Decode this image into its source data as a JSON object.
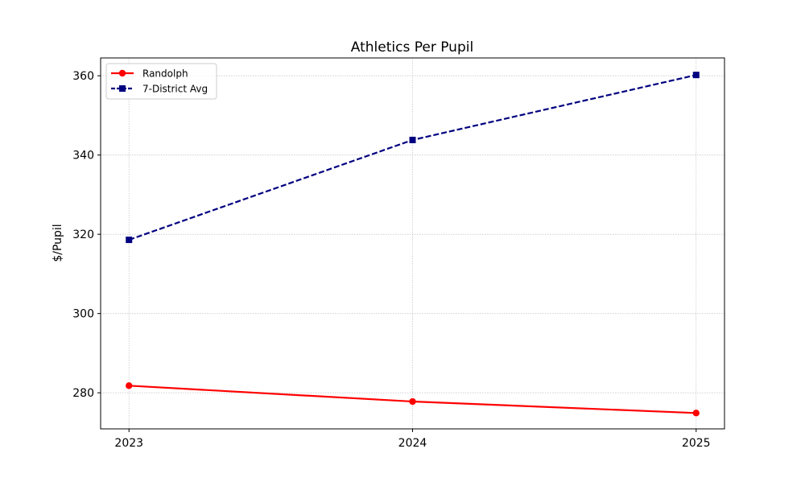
{
  "chart_data": {
    "type": "line",
    "title": "Athletics Per Pupil",
    "xlabel": "",
    "ylabel": "$/Pupil",
    "x": [
      2023,
      2024,
      2025
    ],
    "x_tick_labels": [
      "2023",
      "2024",
      "2025"
    ],
    "xlim": [
      2022.9,
      2025.1
    ],
    "ylim": [
      270.9,
      364.5
    ],
    "y_ticks": [
      280,
      300,
      320,
      340,
      360
    ],
    "y_tick_labels": [
      "280",
      "300",
      "320",
      "340",
      "360"
    ],
    "grid": true,
    "legend_position": "top-left",
    "series": [
      {
        "name": "Randolph",
        "values": [
          281.8,
          277.8,
          274.9
        ],
        "color": "#ff0000",
        "linestyle": "solid",
        "marker": "circle"
      },
      {
        "name": "7-District Avg",
        "values": [
          318.6,
          343.8,
          360.2
        ],
        "color": "#000080",
        "linestyle": "dashed",
        "marker": "square"
      }
    ]
  }
}
